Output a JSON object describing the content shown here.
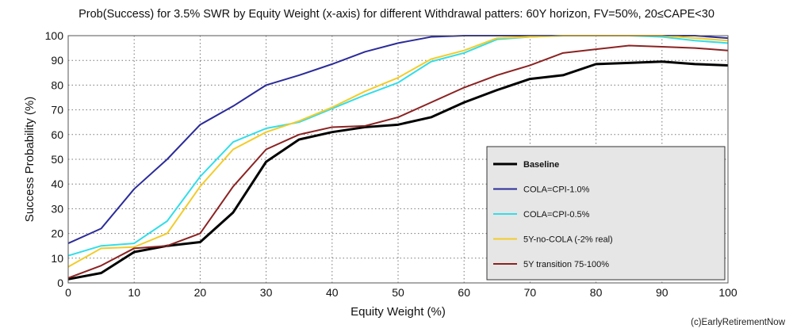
{
  "chart_data": {
    "type": "line",
    "title": "Prob(Success) for 3.5% SWR by Equity Weight (x-axis) for different Withdrawal patters: 60Y horizon, FV=50%, 20≤CAPE<30",
    "xlabel": "Equity Weight (%)",
    "ylabel": "Success Probability (%)",
    "xlim": [
      0,
      100
    ],
    "ylim": [
      0,
      100
    ],
    "xticks": [
      0,
      10,
      20,
      30,
      40,
      50,
      60,
      70,
      80,
      90,
      100
    ],
    "yticks": [
      0,
      10,
      20,
      30,
      40,
      50,
      60,
      70,
      80,
      90,
      100
    ],
    "grid": true,
    "legend_position": "bottom-right",
    "x": [
      0,
      5,
      10,
      15,
      20,
      25,
      30,
      35,
      40,
      45,
      50,
      55,
      60,
      65,
      70,
      75,
      80,
      85,
      90,
      95,
      100
    ],
    "series": [
      {
        "name": "Baseline",
        "color": "#000000",
        "values": [
          1.5,
          4,
          12.5,
          15,
          16.5,
          28.5,
          49,
          58,
          61,
          63,
          64,
          67,
          73,
          78,
          82.5,
          84,
          88.5,
          89,
          89.5,
          88.5,
          88
        ]
      },
      {
        "name": "COLA=CPI-1.0%",
        "color": "#2b2b9a",
        "values": [
          16,
          22,
          38,
          50,
          64,
          71.5,
          80,
          84,
          88.5,
          93.5,
          97,
          99.5,
          100,
          100,
          100,
          100,
          100,
          100,
          100,
          100,
          99
        ]
      },
      {
        "name": "COLA=CPI-0.5%",
        "color": "#33dde8",
        "values": [
          11,
          15,
          16,
          25,
          43,
          57,
          62.5,
          65,
          70.5,
          76,
          81,
          89.5,
          93,
          98.5,
          99.5,
          100,
          100,
          100,
          99.5,
          98,
          97
        ]
      },
      {
        "name": "5Y-no-COLA (-2% real)",
        "color": "#f2cc2a",
        "values": [
          6.5,
          14,
          14.5,
          20,
          39,
          54,
          61,
          65.5,
          71,
          77.5,
          83,
          90.5,
          94,
          99,
          99.5,
          100,
          100,
          100,
          100,
          99,
          98
        ]
      },
      {
        "name": "5Y transition 75-100%",
        "color": "#8b2222",
        "values": [
          2,
          7,
          14,
          15,
          20,
          39,
          54,
          60,
          63,
          63.5,
          67,
          73,
          79,
          84,
          88,
          93,
          94.5,
          96,
          95.5,
          95,
          94
        ]
      }
    ],
    "watermark": "(c)EarlyRetirementNow"
  }
}
